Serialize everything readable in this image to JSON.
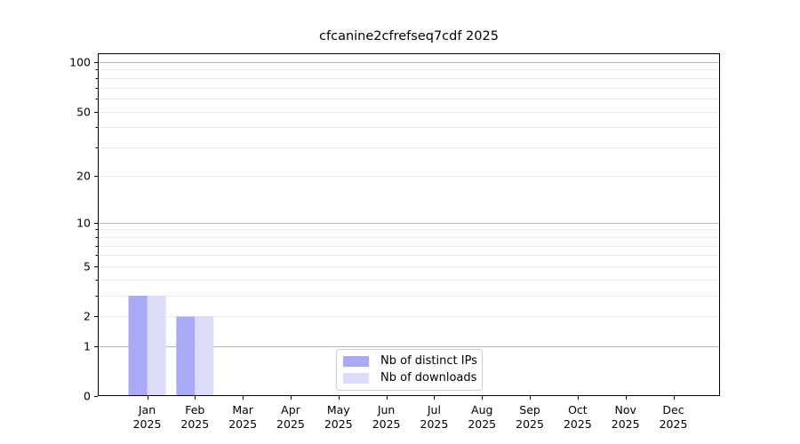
{
  "title": "cfcanine2cfrefseq7cdf 2025",
  "legend": {
    "items": [
      {
        "label": "Nb of distinct IPs",
        "color": "#a9a9f5"
      },
      {
        "label": "Nb of downloads",
        "color": "#dcdcf8"
      }
    ]
  },
  "chart_data": {
    "type": "bar",
    "title": "cfcanine2cfrefseq7cdf 2025",
    "categories": [
      "Jan 2025",
      "Feb 2025",
      "Mar 2025",
      "Apr 2025",
      "May 2025",
      "Jun 2025",
      "Jul 2025",
      "Aug 2025",
      "Sep 2025",
      "Oct 2025",
      "Nov 2025",
      "Dec 2025"
    ],
    "series": [
      {
        "name": "Nb of distinct IPs",
        "color": "#a9a9f5",
        "values": [
          3,
          2,
          0,
          0,
          0,
          0,
          0,
          0,
          0,
          0,
          0,
          0
        ]
      },
      {
        "name": "Nb of downloads",
        "color": "#dcdcf8",
        "values": [
          3,
          2,
          0,
          0,
          0,
          0,
          0,
          0,
          0,
          0,
          0,
          0
        ]
      }
    ],
    "xlabel": "",
    "ylabel": "",
    "yscale": "log1p",
    "ylim": [
      0,
      100
    ],
    "yticks": [
      0,
      1,
      2,
      5,
      10,
      20,
      50,
      100
    ],
    "grid": true,
    "legend_position": "lower-center-inside"
  }
}
